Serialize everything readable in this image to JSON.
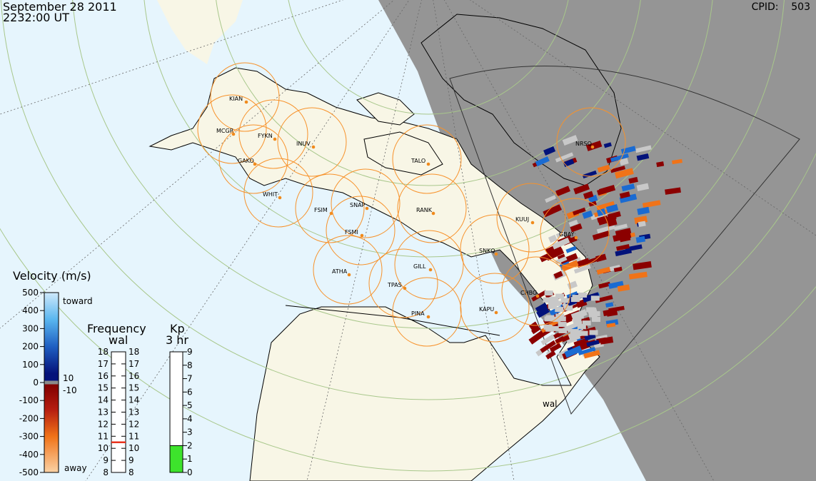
{
  "header": {
    "date": "September 28 2011",
    "time": "2232:00 UT",
    "cpid_label": "CPID:",
    "cpid_value": "503"
  },
  "colors": {
    "ocean": "#e6f5fd",
    "land": "#f8f6e6",
    "night": "#959595",
    "circle": "#f7922b",
    "grid": "#a8c78b",
    "station_dot": "#f08a1c"
  },
  "stations": [
    {
      "code": "KIAN"
    },
    {
      "code": "MCGR"
    },
    {
      "code": "FYKN"
    },
    {
      "code": "INUV"
    },
    {
      "code": "GAKO"
    },
    {
      "code": "WHIT"
    },
    {
      "code": "TALO"
    },
    {
      "code": "FSIM"
    },
    {
      "code": "SNAP"
    },
    {
      "code": "FSMI"
    },
    {
      "code": "RANK"
    },
    {
      "code": "NRSQ"
    },
    {
      "code": "KUUJ"
    },
    {
      "code": "GBAY"
    },
    {
      "code": "SNKQ"
    },
    {
      "code": "ATHA"
    },
    {
      "code": "GILL"
    },
    {
      "code": "TPAS"
    },
    {
      "code": "CHBG"
    },
    {
      "code": "KAPU"
    },
    {
      "code": "PINA"
    }
  ],
  "radar_label": "wal",
  "velocity_scale": {
    "title": "Velocity (m/s)",
    "ticks": [
      "500",
      "400",
      "300",
      "200",
      "100",
      "0",
      "-100",
      "-200",
      "-300",
      "-400",
      "-500"
    ],
    "toward": "toward",
    "away": "away",
    "gs_pos": "10",
    "gs_neg": "-10"
  },
  "frequency_scale": {
    "title": "Frequency",
    "subtitle": "wal",
    "ticks": [
      "18",
      "17",
      "16",
      "15",
      "14",
      "13",
      "12",
      "11",
      "10",
      "9",
      "8"
    ],
    "current_mhz": 10.5
  },
  "kp_scale": {
    "title": "Kp",
    "subtitle": "3 hr",
    "ticks": [
      "9",
      "8",
      "7",
      "6",
      "5",
      "4",
      "3",
      "2",
      "1",
      "0"
    ],
    "value": 2
  }
}
